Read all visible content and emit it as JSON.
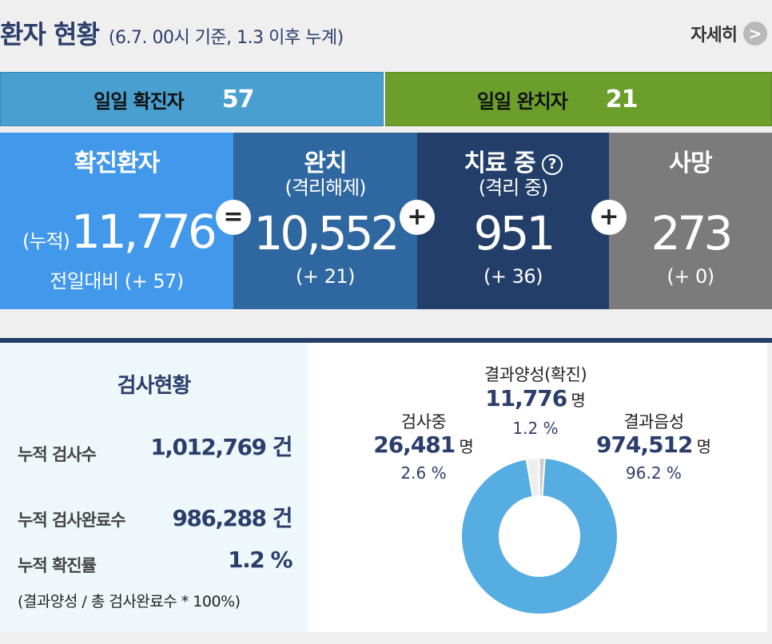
{
  "header": {
    "title": "환자 현황",
    "subtitle": "(6.7. 00시 기준, 1.3 이후 누계)",
    "detail_label": "자세히",
    "detail_icon": ">"
  },
  "daily": {
    "confirmed_label": "일일 확진자",
    "confirmed_value": "57",
    "recovered_label": "일일 완치자",
    "recovered_value": "21"
  },
  "stats": {
    "confirmed": {
      "title": "확진환자",
      "prefix": "(누적)",
      "value": "11,776",
      "delta": "전일대비 (+ 57)"
    },
    "released": {
      "title": "완치",
      "subtitle": "(격리해제)",
      "value": "10,552",
      "delta": "(+ 21)"
    },
    "treating": {
      "title": "치료 중",
      "subtitle": "(격리 중)",
      "help_icon": "?",
      "value": "951",
      "delta": "(+ 36)"
    },
    "deaths": {
      "title": "사망",
      "value": "273",
      "delta": "(+ 0)"
    },
    "operators": {
      "equals": "=",
      "plus": "+"
    }
  },
  "tests": {
    "title": "검사현황",
    "total_label": "누적 검사수",
    "total_value": "1,012,769 건",
    "done_label": "누적 검사완료수",
    "done_value": "986,288 건",
    "rate_label": "누적 확진률",
    "rate_value": "1.2 %",
    "formula": "(결과양성 / 총 검사완료수 * 100%)"
  },
  "donut": {
    "unit": "명",
    "positive": {
      "label": "결과양성(확진)",
      "value": "11,776",
      "pct": "1.2 %"
    },
    "testing": {
      "label": "검사중",
      "value": "26,481",
      "pct": "2.6 %"
    },
    "negative": {
      "label": "결과음성",
      "value": "974,512",
      "pct": "96.2 %"
    },
    "colors": {
      "negative": "#55ade1",
      "testing": "#eeeeee",
      "positive": "#cccccc"
    }
  },
  "chart_data": {
    "type": "pie",
    "categories": [
      "결과양성(확진)",
      "검사중",
      "결과음성"
    ],
    "values": [
      11776,
      26481,
      974512
    ],
    "percent": [
      1.2,
      2.6,
      96.2
    ]
  }
}
